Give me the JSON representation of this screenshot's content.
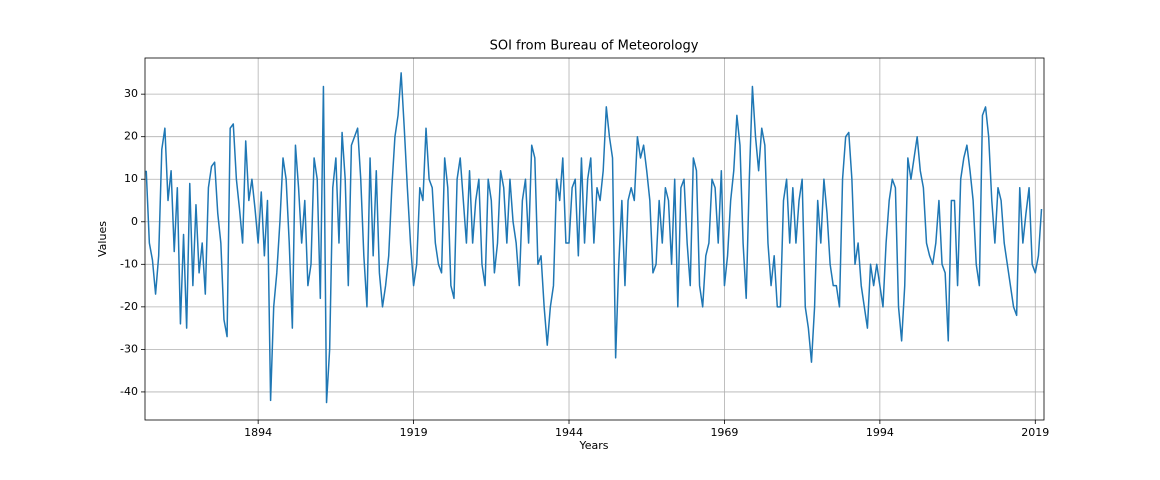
{
  "chart_data": {
    "type": "line",
    "title": "SOI from Bureau of Meteorology",
    "x_label": "Years",
    "y_label": "Values",
    "color": "#1f77b4",
    "grid": true,
    "xlim": [
      1875.8,
      2020.4
    ],
    "ylim": [
      -46.6,
      38.5
    ],
    "xticks": [
      1894,
      1919,
      1944,
      1969,
      1994,
      2019
    ],
    "yticks": [
      -40,
      -30,
      -20,
      -10,
      0,
      10,
      20,
      30
    ],
    "x": [
      1876,
      1876.5,
      1877,
      1877.5,
      1878,
      1878.5,
      1879,
      1879.5,
      1880,
      1880.5,
      1881,
      1881.5,
      1882,
      1882.5,
      1883,
      1883.5,
      1884,
      1884.5,
      1885,
      1885.5,
      1886,
      1886.5,
      1887,
      1887.5,
      1888,
      1888.5,
      1889,
      1889.5,
      1890,
      1890.5,
      1891,
      1891.5,
      1892,
      1892.5,
      1893,
      1893.5,
      1894,
      1894.5,
      1895,
      1895.5,
      1896,
      1896.5,
      1897,
      1897.5,
      1898,
      1898.5,
      1899,
      1899.5,
      1900,
      1900.5,
      1901,
      1901.5,
      1902,
      1902.5,
      1903,
      1903.5,
      1904,
      1904.5,
      1905,
      1905.5,
      1906,
      1906.5,
      1907,
      1907.5,
      1908,
      1908.5,
      1909,
      1909.5,
      1910,
      1910.5,
      1911,
      1911.5,
      1912,
      1912.5,
      1913,
      1913.5,
      1914,
      1914.5,
      1915,
      1915.5,
      1916,
      1916.5,
      1917,
      1917.5,
      1918,
      1918.5,
      1919,
      1919.5,
      1920,
      1920.5,
      1921,
      1921.5,
      1922,
      1922.5,
      1923,
      1923.5,
      1924,
      1924.5,
      1925,
      1925.5,
      1926,
      1926.5,
      1927,
      1927.5,
      1928,
      1928.5,
      1929,
      1929.5,
      1930,
      1930.5,
      1931,
      1931.5,
      1932,
      1932.5,
      1933,
      1933.5,
      1934,
      1934.5,
      1935,
      1935.5,
      1936,
      1936.5,
      1937,
      1937.5,
      1938,
      1938.5,
      1939,
      1939.5,
      1940,
      1940.5,
      1941,
      1941.5,
      1942,
      1942.5,
      1943,
      1943.5,
      1944,
      1944.5,
      1945,
      1945.5,
      1946,
      1946.5,
      1947,
      1947.5,
      1948,
      1948.5,
      1949,
      1949.5,
      1950,
      1950.5,
      1951,
      1951.5,
      1952,
      1952.5,
      1953,
      1953.5,
      1954,
      1954.5,
      1955,
      1955.5,
      1956,
      1956.5,
      1957,
      1957.5,
      1958,
      1958.5,
      1959,
      1959.5,
      1960,
      1960.5,
      1961,
      1961.5,
      1962,
      1962.5,
      1963,
      1963.5,
      1964,
      1964.5,
      1965,
      1965.5,
      1966,
      1966.5,
      1967,
      1967.5,
      1968,
      1968.5,
      1969,
      1969.5,
      1970,
      1970.5,
      1971,
      1971.5,
      1972,
      1972.5,
      1973,
      1973.5,
      1974,
      1974.5,
      1975,
      1975.5,
      1976,
      1976.5,
      1977,
      1977.5,
      1978,
      1978.5,
      1979,
      1979.5,
      1980,
      1980.5,
      1981,
      1981.5,
      1982,
      1982.5,
      1983,
      1983.5,
      1984,
      1984.5,
      1985,
      1985.5,
      1986,
      1986.5,
      1987,
      1987.5,
      1988,
      1988.5,
      1989,
      1989.5,
      1990,
      1990.5,
      1991,
      1991.5,
      1992,
      1992.5,
      1993,
      1993.5,
      1994,
      1994.5,
      1995,
      1995.5,
      1996,
      1996.5,
      1997,
      1997.5,
      1998,
      1998.5,
      1999,
      1999.5,
      2000,
      2000.5,
      2001,
      2001.5,
      2002,
      2002.5,
      2003,
      2003.5,
      2004,
      2004.5,
      2005,
      2005.5,
      2006,
      2006.5,
      2007,
      2007.5,
      2008,
      2008.5,
      2009,
      2009.5,
      2010,
      2010.5,
      2011,
      2011.5,
      2012,
      2012.5,
      2013,
      2013.5,
      2014,
      2014.5,
      2015,
      2015.5,
      2016,
      2016.5,
      2017,
      2017.5,
      2018,
      2018.5,
      2019,
      2019.5,
      2020
    ],
    "values": [
      12,
      -5,
      -9,
      -17,
      -8,
      17,
      22,
      5,
      12,
      -7,
      8,
      -24,
      -3,
      -25,
      9,
      -15,
      4,
      -12,
      -5,
      -17,
      8,
      13,
      14,
      2,
      -5,
      -23,
      -27,
      22,
      23,
      10,
      3,
      -5,
      19,
      5,
      10,
      3,
      -5,
      7,
      -8,
      5,
      -42,
      -20,
      -12,
      0,
      15,
      10,
      -5,
      -25,
      18,
      8,
      -5,
      5,
      -15,
      -10,
      15,
      10,
      -18,
      31.8,
      -42.5,
      -30,
      8,
      15,
      -5,
      21,
      10,
      -15,
      18,
      20,
      22,
      10,
      -8,
      -20,
      15,
      -8,
      12,
      -12,
      -20,
      -15,
      -8,
      8,
      20,
      25,
      35,
      22,
      8,
      -5,
      -15,
      -10,
      8,
      5,
      22,
      10,
      8,
      -5,
      -10,
      -12,
      15,
      8,
      -15,
      -18,
      10,
      15,
      5,
      -5,
      12,
      -5,
      5,
      10,
      -10,
      -15,
      10,
      5,
      -12,
      -5,
      12,
      8,
      -5,
      10,
      0,
      -5,
      -15,
      5,
      10,
      -5,
      18,
      15,
      -10,
      -8,
      -20,
      -29,
      -20,
      -15,
      10,
      5,
      15,
      -5,
      -5,
      8,
      10,
      -8,
      15,
      -5,
      10,
      15,
      -5,
      8,
      5,
      12,
      27,
      20,
      15,
      -32,
      -10,
      5,
      -15,
      5,
      8,
      5,
      20,
      15,
      18,
      12,
      5,
      -12,
      -10,
      5,
      -5,
      8,
      5,
      -10,
      10,
      -20,
      8,
      10,
      -5,
      -15,
      15,
      12,
      -15,
      -20,
      -8,
      -5,
      10,
      8,
      -5,
      12,
      -15,
      -8,
      5,
      12,
      25,
      18,
      -5,
      -18,
      10,
      31.8,
      20,
      12,
      22,
      18,
      -5,
      -15,
      -8,
      -20,
      -20,
      5,
      10,
      -5,
      8,
      -5,
      5,
      10,
      -20,
      -25,
      -33,
      -20,
      5,
      -5,
      10,
      2,
      -10,
      -15,
      -15,
      -20,
      10,
      20,
      21,
      10,
      -10,
      -5,
      -15,
      -20,
      -25,
      -10,
      -15,
      -10,
      -15,
      -20,
      -5,
      5,
      10,
      8,
      -20,
      -28,
      -15,
      15,
      10,
      15,
      20,
      12,
      8,
      -5,
      -8,
      -10,
      -5,
      5,
      -10,
      -12,
      -28,
      5,
      5,
      -15,
      10,
      15,
      18,
      12,
      5,
      -10,
      -15,
      25,
      27,
      20,
      5,
      -5,
      8,
      5,
      -5,
      -10,
      -15,
      -20,
      -22,
      8,
      -5,
      2,
      8,
      -10,
      -12,
      -8,
      3
    ]
  }
}
